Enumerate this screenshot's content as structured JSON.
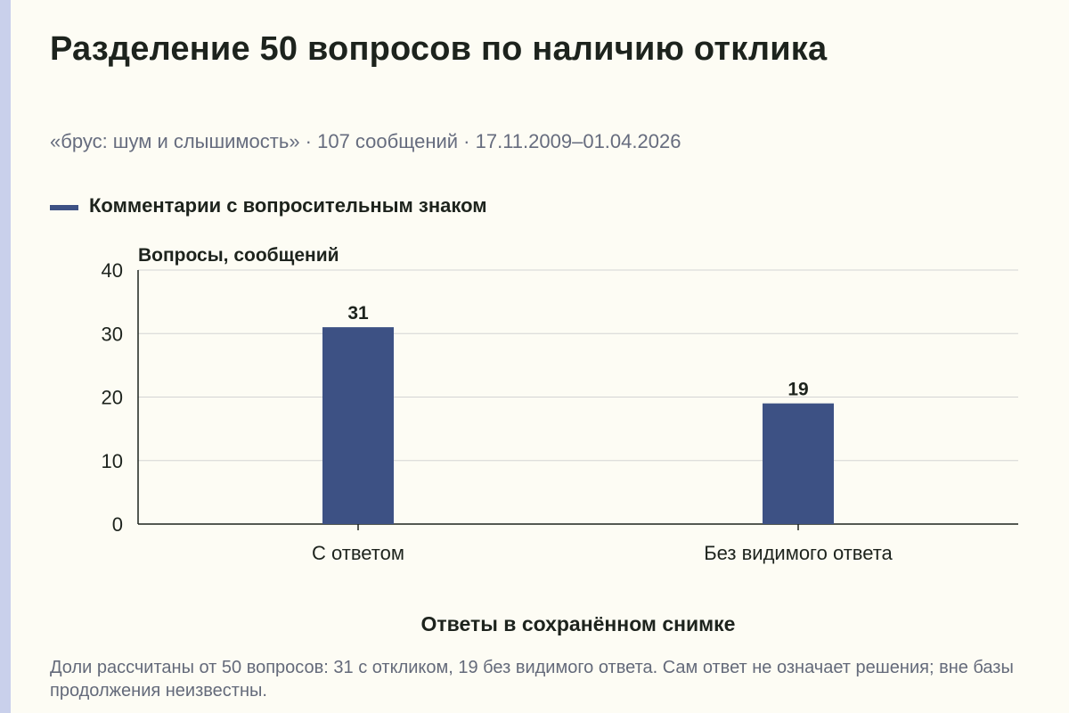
{
  "title": "Разделение 50 вопросов по наличию отклика",
  "subtitle": "«брус: шум и слышимость» · 107 сообщений · 17.11.2009–01.04.2026",
  "footnote": "Доли рассчитаны от 50 вопросов: 31 с откликом, 19 без видимого ответа. Сам ответ не означает решения; вне базы продолжения неизвестны.",
  "colors": {
    "bar": "#3d5184",
    "accent_stripe": "#c9d0eb",
    "background": "#fdfcf4",
    "grid": "#d4d4d4",
    "axis": "#1d231d"
  },
  "chart_data": {
    "type": "bar",
    "categories": [
      "С ответом",
      "Без видимого ответа"
    ],
    "series": [
      {
        "name": "Комментарии с вопросительным знаком",
        "values": [
          31,
          19
        ]
      }
    ],
    "data_labels": [
      "31",
      "19"
    ],
    "xlabel": "Ответы в сохранённом снимке",
    "ylabel": "Вопросы, сообщений",
    "ylim": [
      0,
      40
    ],
    "yticks": [
      0,
      10,
      20,
      30,
      40
    ],
    "grid": true,
    "legend_position": "top-left"
  }
}
